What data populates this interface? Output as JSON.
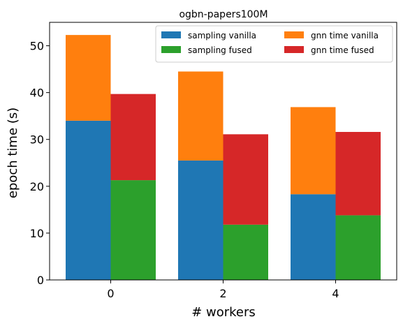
{
  "chart_data": {
    "type": "bar",
    "title": "ogbn-papers100M",
    "xlabel": "# workers",
    "ylabel": "epoch time (s)",
    "categories": [
      "0",
      "2",
      "4"
    ],
    "ylim": [
      0,
      55
    ],
    "yticks": [
      0,
      10,
      20,
      30,
      40,
      50
    ],
    "grid": false,
    "legend_placement": "top-right",
    "stacks": [
      {
        "name": "vanilla",
        "series": [
          {
            "name": "sampling vanilla",
            "color": "#1f77b4",
            "values": [
              34.0,
              25.5,
              18.3
            ]
          },
          {
            "name": "gnn time vanilla",
            "color": "#ff7f0e",
            "values": [
              18.3,
              19.0,
              18.6
            ]
          }
        ]
      },
      {
        "name": "fused",
        "series": [
          {
            "name": "sampling fused",
            "color": "#2ca02c",
            "values": [
              21.3,
              11.8,
              13.8
            ]
          },
          {
            "name": "gnn time fused",
            "color": "#d62728",
            "values": [
              18.4,
              19.3,
              17.8
            ]
          }
        ]
      }
    ],
    "legend": [
      {
        "label": "sampling vanilla",
        "color": "#1f77b4"
      },
      {
        "label": "sampling fused",
        "color": "#2ca02c"
      },
      {
        "label": "gnn time vanilla",
        "color": "#ff7f0e"
      },
      {
        "label": "gnn time fused",
        "color": "#d62728"
      }
    ]
  }
}
